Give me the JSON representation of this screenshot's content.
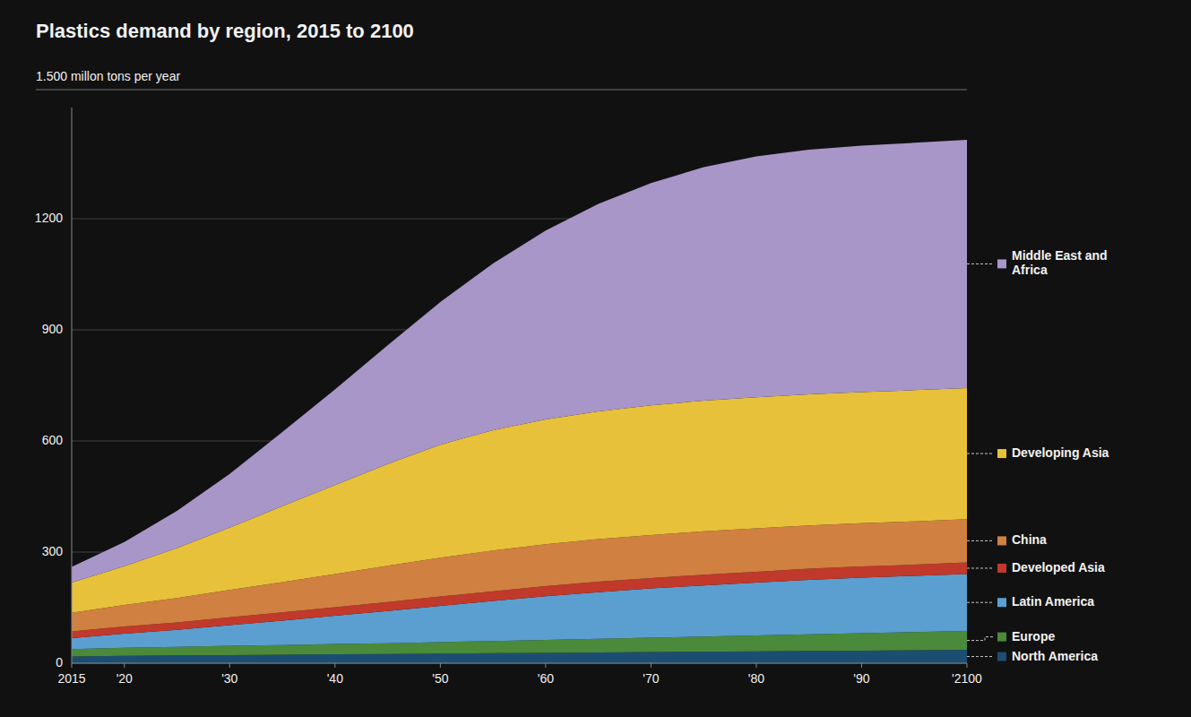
{
  "chart_data": {
    "type": "area",
    "stacked": true,
    "title": "Plastics demand by region, 2015 to 2100",
    "ylabel": "1.500 millon tons per year",
    "x": [
      2015,
      2020,
      2025,
      2030,
      2035,
      2040,
      2045,
      2050,
      2055,
      2060,
      2065,
      2070,
      2075,
      2080,
      2085,
      2090,
      2095,
      2100
    ],
    "xlim": [
      2015,
      2100
    ],
    "xticks": [
      2015,
      {
        "value": 2020,
        "label": "'20"
      },
      {
        "value": 2030,
        "label": "'30"
      },
      {
        "value": 2040,
        "label": "'40"
      },
      {
        "value": 2050,
        "label": "'50"
      },
      {
        "value": 2060,
        "label": "'60"
      },
      {
        "value": 2070,
        "label": "'70"
      },
      {
        "value": 2080,
        "label": "'80"
      },
      {
        "value": 2090,
        "label": "'90"
      },
      {
        "value": 2100,
        "label": "'2100"
      }
    ],
    "ylim": [
      0,
      1500
    ],
    "yticks": [
      0,
      300,
      600,
      900,
      1200
    ],
    "grid": true,
    "legend": "right",
    "series": [
      {
        "name": "North America",
        "color": "#1c4e72",
        "values": [
          18,
          20,
          21,
          22,
          23,
          24,
          25,
          26,
          27,
          28,
          29,
          30,
          31,
          32,
          33,
          34,
          35,
          36
        ]
      },
      {
        "name": "Europe",
        "color": "#4a8a3a",
        "values": [
          20,
          22,
          23,
          25,
          26,
          28,
          29,
          31,
          33,
          35,
          37,
          39,
          41,
          43,
          45,
          47,
          49,
          51
        ]
      },
      {
        "name": "Latin America",
        "color": "#5b9fd0",
        "values": [
          30,
          38,
          46,
          56,
          66,
          76,
          87,
          98,
          108,
          118,
          126,
          133,
          138,
          143,
          147,
          150,
          152,
          154
        ]
      },
      {
        "name": "Developed Asia",
        "color": "#c0392b",
        "values": [
          18,
          19,
          20,
          21,
          22,
          23,
          24,
          25,
          26,
          27,
          28,
          28,
          29,
          29,
          30,
          30,
          30,
          31
        ]
      },
      {
        "name": "China",
        "color": "#d08040",
        "values": [
          50,
          58,
          66,
          74,
          82,
          90,
          98,
          105,
          110,
          113,
          115,
          116,
          117,
          117,
          117,
          117,
          117,
          117
        ]
      },
      {
        "name": "Developing Asia",
        "color": "#e8c13a",
        "values": [
          82,
          105,
          135,
          168,
          205,
          240,
          275,
          305,
          325,
          337,
          345,
          350,
          353,
          354,
          354,
          354,
          354,
          354
        ]
      },
      {
        "name": "Middle East and\nAfrica",
        "color": "#a896c8",
        "values": [
          42,
          65,
          100,
          145,
          200,
          258,
          320,
          385,
          450,
          510,
          560,
          600,
          630,
          650,
          660,
          665,
          668,
          670
        ]
      }
    ]
  }
}
